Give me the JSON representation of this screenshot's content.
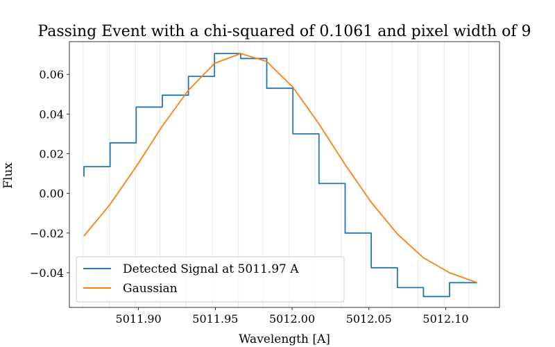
{
  "chart_data": {
    "type": "line",
    "title": "Passing Event with a chi-squared of 0.1061 and pixel width of 9",
    "xlabel": "Wavelength [A]",
    "ylabel": "Flux",
    "xlim": [
      5011.855,
      5012.135
    ],
    "ylim": [
      -0.0575,
      0.0765
    ],
    "x_ticks": [
      5011.9,
      5011.95,
      5012.0,
      5012.05,
      5012.1
    ],
    "x_tick_labels": [
      "5011.90",
      "5011.95",
      "5012.00",
      "5012.05",
      "5012.10"
    ],
    "y_ticks": [
      -0.04,
      -0.02,
      0.0,
      0.02,
      0.04,
      0.06
    ],
    "y_tick_labels": [
      "−0.04",
      "−0.02",
      "0.00",
      "0.02",
      "0.04",
      "0.06"
    ],
    "grid_x": [
      5011.864,
      5011.881,
      5011.898,
      5011.914,
      5011.931,
      5011.948,
      5011.965,
      5011.981,
      5011.998,
      5012.015,
      5012.032,
      5012.048,
      5012.065,
      5012.082,
      5012.099,
      5012.115
    ],
    "legend_position": "lower-left",
    "series": [
      {
        "name": "Detected Signal at 5011.97 A",
        "color": "#1f77b4",
        "style": "step",
        "x": [
          5011.8645,
          5011.8645,
          5011.8815,
          5011.8815,
          5011.8985,
          5011.8985,
          5011.9155,
          5011.9155,
          5011.9325,
          5011.9325,
          5011.9495,
          5011.9495,
          5011.9665,
          5011.9665,
          5011.9835,
          5011.9835,
          5012.0005,
          5012.0005,
          5012.0175,
          5012.0175,
          5012.0345,
          5012.0345,
          5012.0515,
          5012.0515,
          5012.0685,
          5012.0685,
          5012.0855,
          5012.0855,
          5012.1025,
          5012.1025,
          5012.1205
        ],
        "y": [
          0.0085,
          0.0135,
          0.0135,
          0.0255,
          0.0255,
          0.0435,
          0.0435,
          0.0495,
          0.0495,
          0.059,
          0.059,
          0.0705,
          0.0705,
          0.068,
          0.068,
          0.053,
          0.053,
          0.03,
          0.03,
          0.005,
          0.005,
          -0.02,
          -0.02,
          -0.0375,
          -0.0375,
          -0.0475,
          -0.0475,
          -0.052,
          -0.052,
          -0.045,
          -0.045
        ]
      },
      {
        "name": "Gaussian",
        "color": "#ff7f0e",
        "style": "line",
        "x": [
          5011.8645,
          5011.8815,
          5011.8985,
          5011.9155,
          5011.9325,
          5011.9495,
          5011.9665,
          5011.9835,
          5012.0005,
          5012.0175,
          5012.0345,
          5012.0515,
          5012.0685,
          5012.0855,
          5012.1025,
          5012.1205
        ],
        "y": [
          -0.0215,
          -0.0055,
          0.0135,
          0.034,
          0.052,
          0.0655,
          0.0705,
          0.0665,
          0.0535,
          0.035,
          0.0145,
          -0.0045,
          -0.0205,
          -0.0325,
          -0.04,
          -0.045
        ]
      }
    ]
  }
}
